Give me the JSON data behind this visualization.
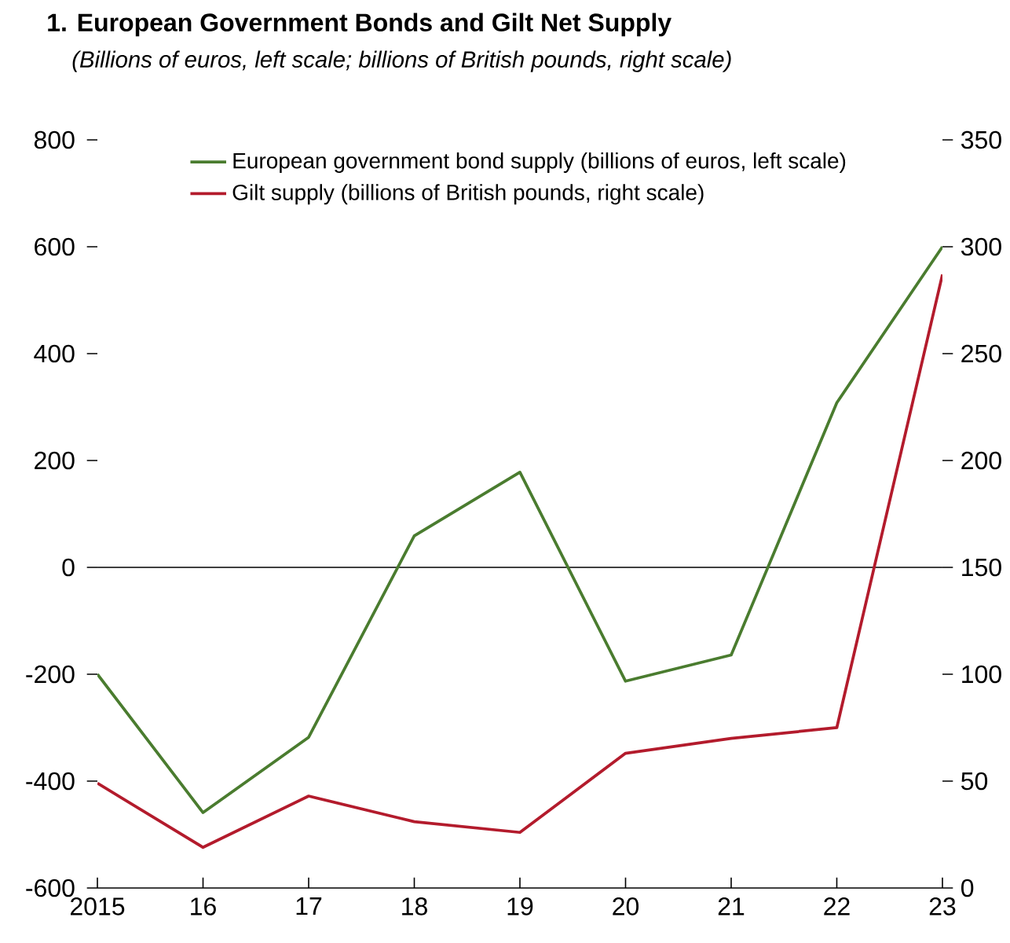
{
  "chart_data": {
    "type": "line",
    "title": "1. European Government Bonds and Gilt Net Supply",
    "subtitle": "(Billions of euros, left scale; billions of British pounds, right scale)",
    "categories": [
      "2015",
      "16",
      "17",
      "18",
      "19",
      "20",
      "21",
      "22",
      "23"
    ],
    "series": [
      {
        "name": "European government bond supply (billions of euros, left scale)",
        "color": "#4a7c2f",
        "values": [
          -200,
          -459,
          -318,
          59,
          178,
          -213,
          -164,
          308,
          600
        ]
      },
      {
        "name": "Gilt supply (billions of British pounds, right scale)",
        "color": "#b31b2c",
        "axis": "y2",
        "values": [
          49,
          19,
          43,
          31,
          26,
          63,
          70,
          75,
          287
        ]
      }
    ],
    "ylim": [
      -600,
      800
    ],
    "yticks": [
      -600,
      -400,
      -200,
      0,
      200,
      400,
      600,
      800
    ],
    "y2lim": [
      0,
      350
    ],
    "y2ticks": [
      0,
      50,
      100,
      150,
      200,
      250,
      300,
      350
    ],
    "ref_lines": [
      {
        "axis": "y",
        "value": 0,
        "color": "#000000"
      }
    ],
    "legend": "top",
    "grid": false,
    "marker": "none",
    "line_style": "solid"
  }
}
